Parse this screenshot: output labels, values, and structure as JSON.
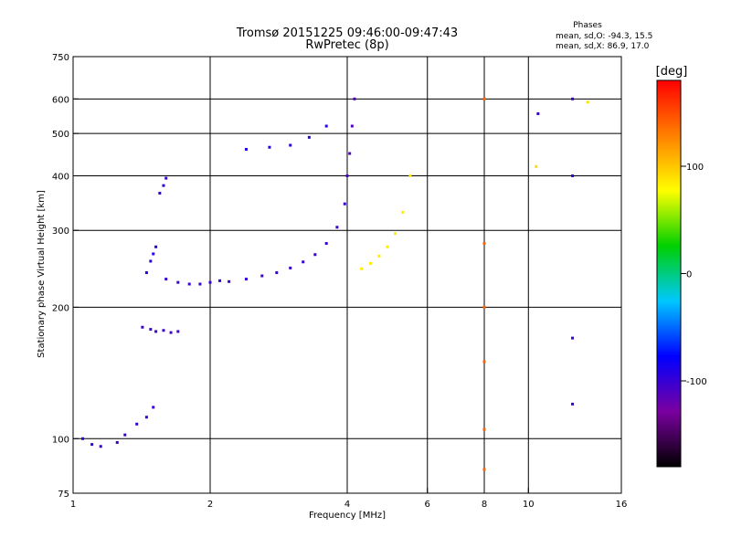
{
  "header": {
    "title_line1": "Tromsø 20151225 09:46:00-09:47:43",
    "title_line2": "RwPretec (8p)"
  },
  "stats": {
    "heading": "Phases",
    "line_o": "mean, sd,O: -94.3, 15.5",
    "line_x": "mean, sd,X: 86.9, 17.0"
  },
  "chart_data": {
    "type": "scatter",
    "xlabel": "Frequency [MHz]",
    "ylabel": "Stationary phase Virtual Height [km]",
    "x_scale": "log",
    "y_scale": "log",
    "xlim": [
      1,
      16
    ],
    "ylim": [
      75,
      750
    ],
    "x_ticks": [
      1,
      2,
      4,
      6,
      8,
      10,
      16
    ],
    "x_tick_labels": [
      "1",
      "2",
      "4",
      "6",
      "8",
      "10",
      "16"
    ],
    "y_ticks": [
      75,
      100,
      200,
      300,
      400,
      500,
      600,
      750
    ],
    "y_tick_labels": [
      "75",
      "100",
      "200",
      "300",
      "400",
      "500",
      "600",
      "750"
    ],
    "x_gridlines": [
      2,
      4,
      6,
      8,
      10
    ],
    "y_gridlines": [
      100,
      200,
      300,
      400,
      500,
      600
    ],
    "grid": true,
    "colorbar": {
      "label": "[deg]",
      "range": [
        -180,
        180
      ],
      "tick_values": [
        100,
        0,
        -100
      ],
      "tick_labels": [
        "100",
        "0",
        "-100"
      ],
      "colors": [
        "#000000",
        "#7a00a0",
        "#0000ff",
        "#00c8ff",
        "#00d000",
        "#ffff00",
        "#ff8000",
        "#ff0000"
      ]
    },
    "series": [
      {
        "phase": -100,
        "x": [
          1.05,
          1.1,
          1.15,
          1.25,
          1.3,
          1.38,
          1.45,
          1.5
        ],
        "y": [
          100,
          97,
          96,
          98,
          102,
          108,
          112,
          118
        ]
      },
      {
        "phase": -105,
        "x": [
          1.42,
          1.48,
          1.52,
          1.58,
          1.64,
          1.7
        ],
        "y": [
          180,
          178,
          176,
          177,
          175,
          176
        ]
      },
      {
        "phase": -95,
        "x": [
          1.45,
          1.48,
          1.5,
          1.52
        ],
        "y": [
          240,
          255,
          265,
          275
        ]
      },
      {
        "phase": -100,
        "x": [
          1.55,
          1.58,
          1.6
        ],
        "y": [
          365,
          380,
          395
        ]
      },
      {
        "phase": -100,
        "x": [
          1.6,
          1.7,
          1.8,
          1.9,
          2.0,
          2.1,
          2.2
        ],
        "y": [
          232,
          228,
          226,
          226,
          228,
          230,
          229
        ]
      },
      {
        "phase": -100,
        "x": [
          2.4,
          2.6,
          2.8,
          3.0,
          3.2,
          3.4,
          3.6,
          3.8,
          3.95
        ],
        "y": [
          232,
          236,
          240,
          246,
          254,
          264,
          280,
          305,
          345
        ]
      },
      {
        "phase": -110,
        "x": [
          4.0,
          4.05,
          4.1,
          4.15
        ],
        "y": [
          400,
          450,
          520,
          600
        ]
      },
      {
        "phase": -95,
        "x": [
          2.4,
          2.7,
          3.0,
          3.3,
          3.6
        ],
        "y": [
          460,
          465,
          470,
          490,
          520
        ]
      },
      {
        "phase": 85,
        "x": [
          4.3,
          4.5,
          4.7,
          4.9,
          5.1,
          5.3,
          5.5
        ],
        "y": [
          245,
          252,
          262,
          275,
          295,
          330,
          400
        ]
      },
      {
        "phase": 140,
        "x": [
          8.0,
          8.0,
          8.0,
          8.0,
          8.0,
          8.0
        ],
        "y": [
          85,
          105,
          150,
          200,
          280,
          600
        ]
      },
      {
        "phase": -100,
        "x": [
          12.5,
          12.5,
          12.5,
          12.5
        ],
        "y": [
          120,
          170,
          400,
          600
        ]
      },
      {
        "phase": -100,
        "x": [
          10.5
        ],
        "y": [
          555
        ]
      },
      {
        "phase": 90,
        "x": [
          10.4,
          13.5
        ],
        "y": [
          420,
          590
        ]
      }
    ]
  }
}
